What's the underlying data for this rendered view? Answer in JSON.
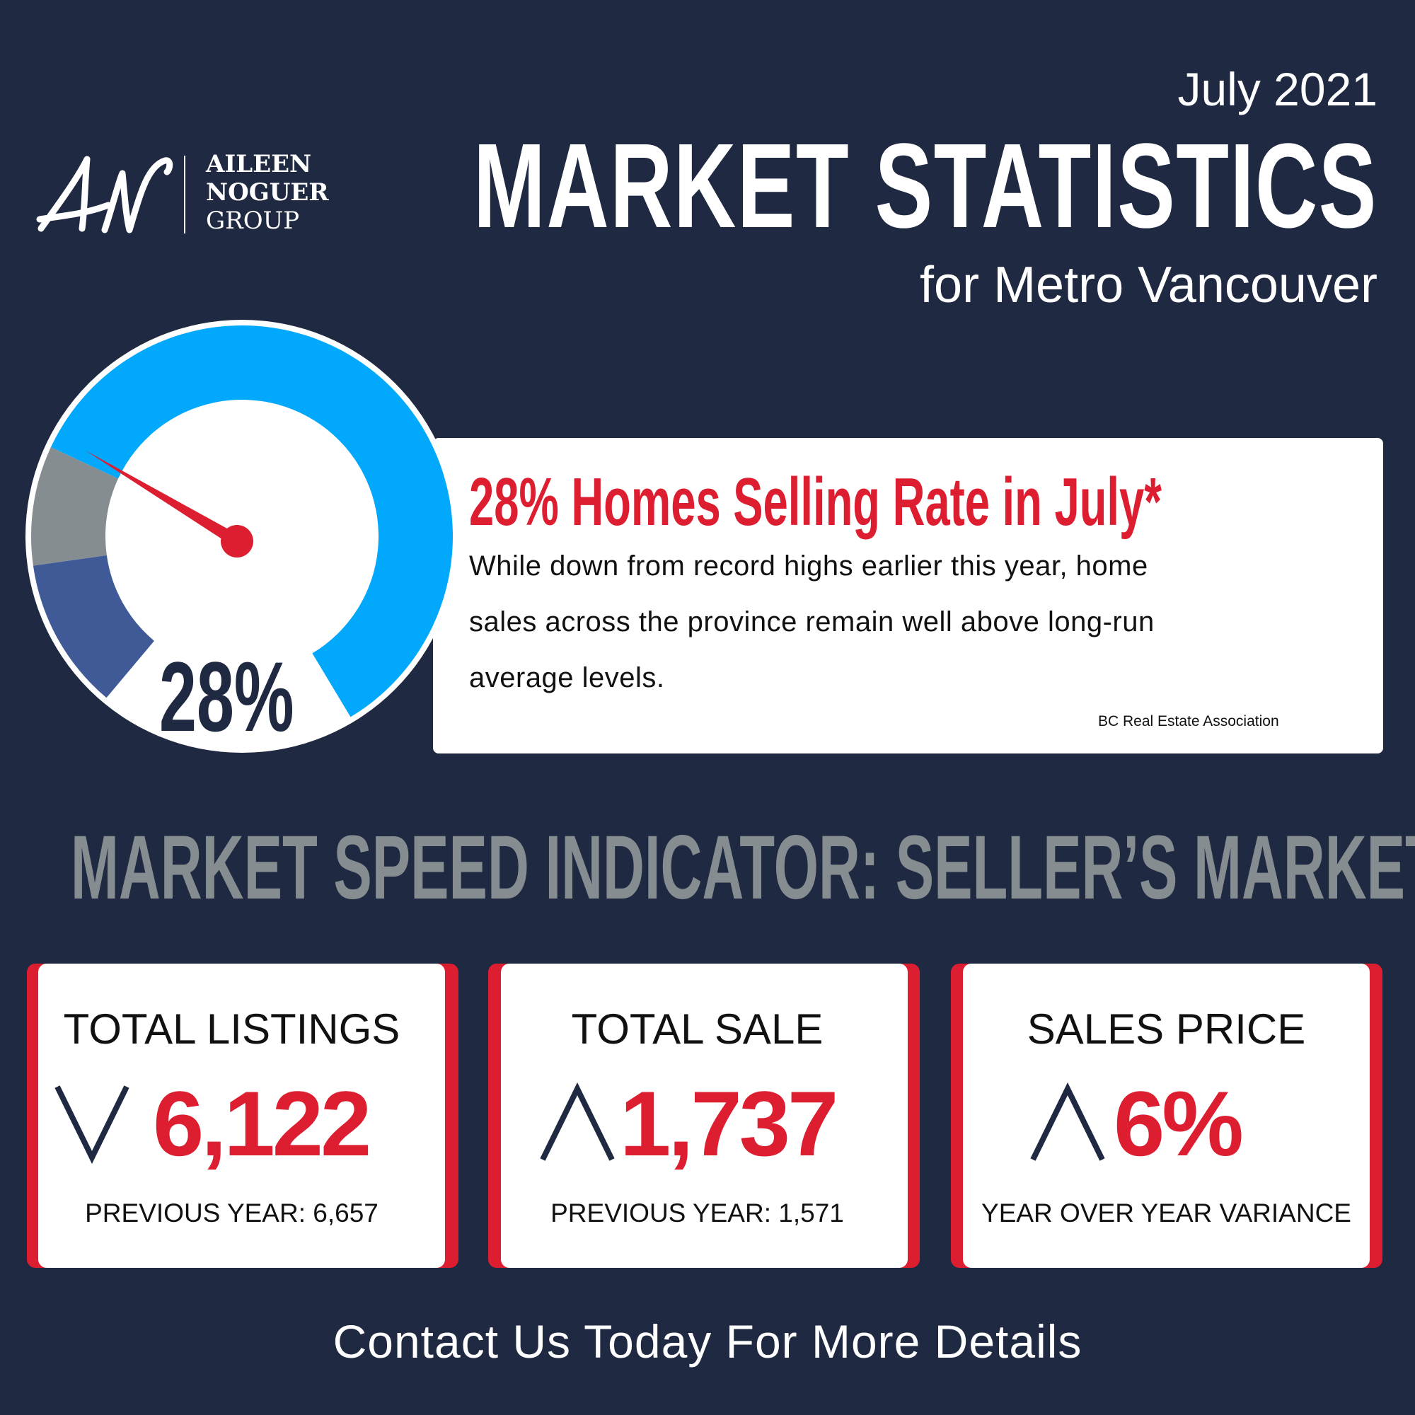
{
  "header": {
    "date": "July 2021",
    "title": "MARKET STATISTICS",
    "subtitle": "for Metro Vancouver"
  },
  "logo": {
    "monogram": "AN",
    "line1": "AILEEN",
    "line2": "NOGUER",
    "line3": "GROUP"
  },
  "gauge": {
    "value_percent": 28,
    "label": "28%",
    "colors": {
      "low": "#405a98",
      "mid": "#868d91",
      "high": "#02a8fc",
      "needle": "#dc1e30"
    }
  },
  "highlight": {
    "headline": "28% Homes Selling Rate in July*",
    "body_lines": [
      "While down from record highs earlier this year, home",
      "sales across the province remain well above long-run",
      "average levels."
    ],
    "source": "BC Real Estate Association"
  },
  "speed_indicator": "MARKET SPEED INDICATOR: SELLER’S MARKET",
  "stats": [
    {
      "title": "TOTAL LISTINGS",
      "trend": "down",
      "trend_icon": "chevron-down-icon",
      "value": "6,122",
      "sub": "PREVIOUS YEAR: 6,657"
    },
    {
      "title": "TOTAL SALE",
      "trend": "up",
      "trend_icon": "chevron-up-icon",
      "value": "1,737",
      "sub": "PREVIOUS YEAR: 1,571"
    },
    {
      "title": "SALES PRICE",
      "trend": "up",
      "trend_icon": "chevron-up-icon",
      "value": "6%",
      "sub": "YEAR OVER YEAR VARIANCE"
    }
  ],
  "footer": {
    "contact": "Contact Us Today For More Details"
  },
  "colors": {
    "background": "#1f2942",
    "accent_red": "#dc1e30",
    "gray": "#868d91",
    "light_blue": "#02a8fc",
    "dark_blue": "#405a98"
  }
}
